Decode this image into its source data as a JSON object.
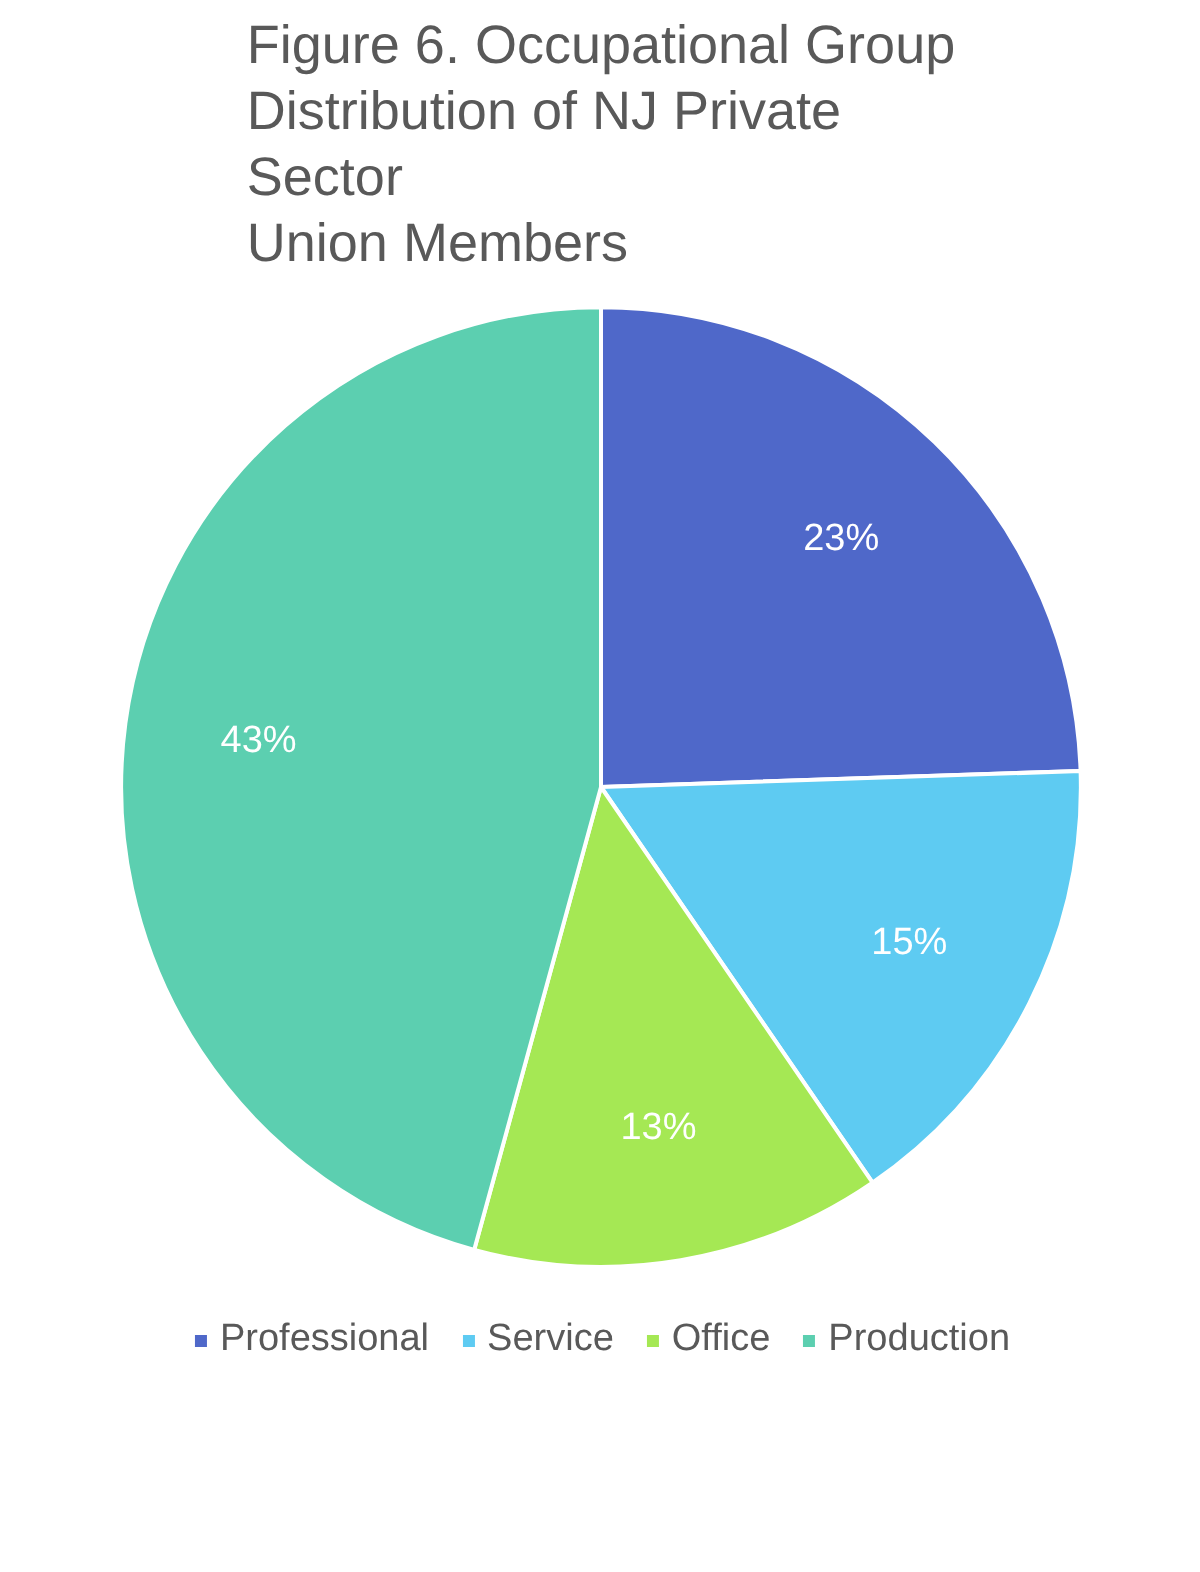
{
  "chart_data": {
    "type": "pie",
    "title": "Figure 6. Occupational Group\nDistribution of NJ Private\nSector\nUnion Members",
    "categories": [
      "Professional",
      "Service",
      "Office",
      "Production"
    ],
    "values": [
      23,
      15,
      13,
      43
    ],
    "colors": [
      "#4f68c9",
      "#5ecbf2",
      "#a5e854",
      "#5ccfb0"
    ],
    "value_labels": [
      "23%",
      "15%",
      "13%",
      "43%"
    ],
    "data_labels": true,
    "legend": "bottom"
  }
}
